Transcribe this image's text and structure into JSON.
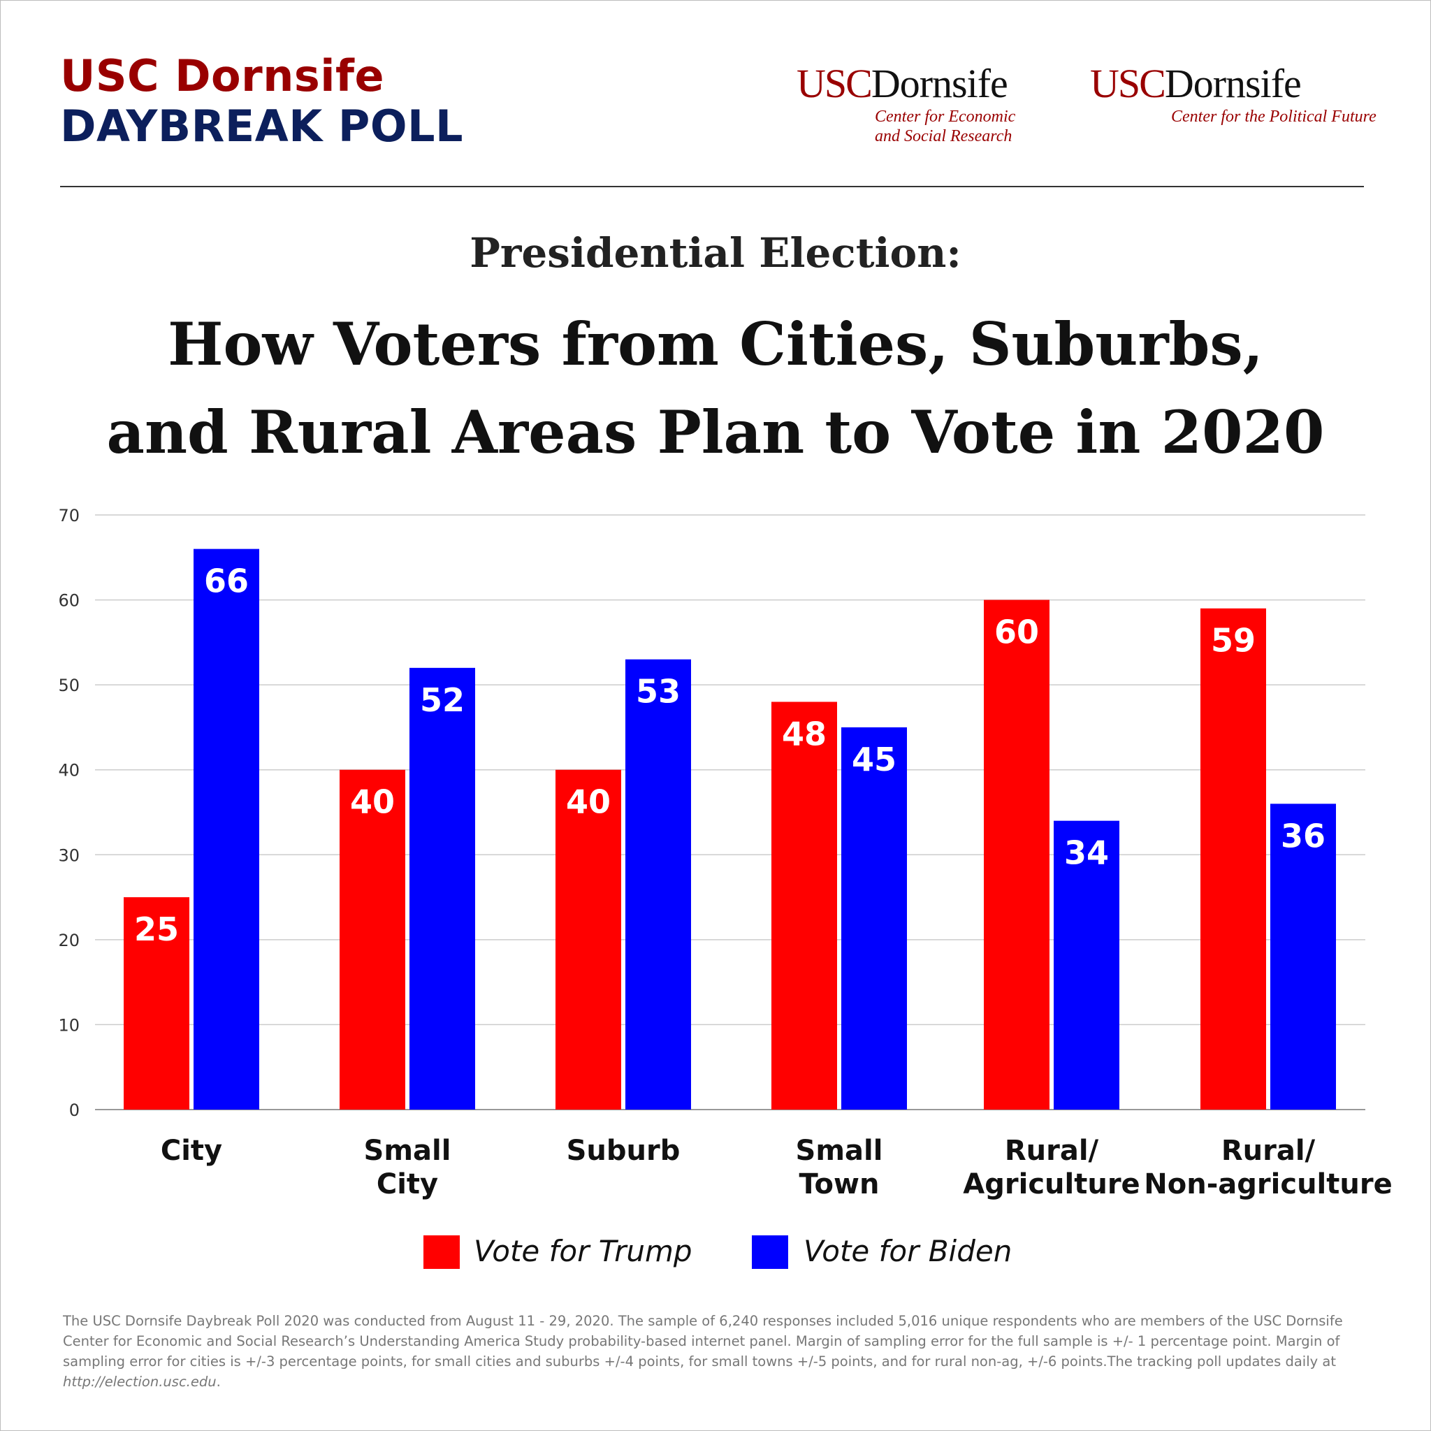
{
  "header": {
    "brand_line1": "USC Dornsife",
    "brand_line2": "DAYBREAK POLL",
    "logos": [
      {
        "usc": "USC",
        "dornsife": "Dornsife",
        "sub_line1": "Center for Economic",
        "sub_line2": "and Social Research"
      },
      {
        "usc": "USC",
        "dornsife": "Dornsife",
        "sub_line1": "Center for the Political Future",
        "sub_line2": ""
      }
    ]
  },
  "subtitle": "Presidential Election:",
  "title_line1": "How Voters from Cities, Suburbs,",
  "title_line2": "and Rural Areas Plan to Vote in 2020",
  "colors": {
    "trump": "#ff0000",
    "biden": "#0000ff",
    "brand_red": "#990000",
    "brand_navy": "#0c1f5c",
    "grid": "#cccccc"
  },
  "chart_data": {
    "type": "bar",
    "title": "How Voters from Cities, Suburbs, and Rural Areas Plan to Vote in 2020",
    "xlabel": "",
    "ylabel": "",
    "ylim": [
      0,
      70
    ],
    "yticks": [
      0,
      10,
      20,
      30,
      40,
      50,
      60,
      70
    ],
    "categories": [
      [
        "City"
      ],
      [
        "Small",
        "City"
      ],
      [
        "Suburb"
      ],
      [
        "Small",
        "Town"
      ],
      [
        "Rural/",
        "Agriculture"
      ],
      [
        "Rural/",
        "Non-agriculture"
      ]
    ],
    "series": [
      {
        "name": "Vote for Trump",
        "values": [
          25,
          40,
          40,
          48,
          60,
          59
        ]
      },
      {
        "name": "Vote for Biden",
        "values": [
          66,
          52,
          53,
          45,
          34,
          36
        ]
      }
    ],
    "legend_position": "bottom-center",
    "grid": true
  },
  "footnote": {
    "text": "The USC Dornsife Daybreak Poll 2020 was conducted from August 11 - 29, 2020. The sample of 6,240 responses included  5,016 unique respondents who are members of the USC Dornsife Center for Economic and Social Research’s Understanding America Study probability-based internet panel. Margin of sampling error for the full sample is +/- 1 percentage point. Margin of sampling error for cities is +/-3 percentage points, for small cities and suburbs +/-4 points, for small towns +/-5 points, and for rural non-ag, +/-6 points.The tracking poll updates daily at ",
    "url": "http://election.usc.edu",
    "end": "."
  }
}
